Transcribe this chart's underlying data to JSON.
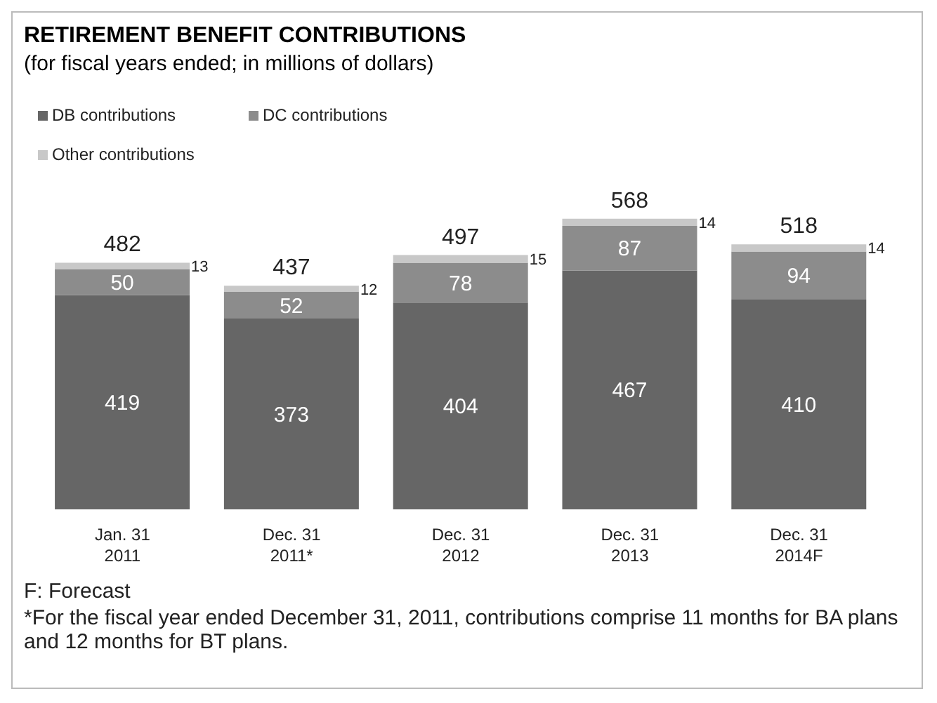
{
  "chart_data": {
    "type": "bar",
    "title": "RETIREMENT BENEFIT CONTRIBUTIONS",
    "subtitle": "(for fiscal years ended; in millions of dollars)",
    "categories": [
      "Jan. 31\n2011",
      "Dec. 31\n2011*",
      "Dec. 31\n2012",
      "Dec. 31\n2013",
      "Dec. 31\n2014F"
    ],
    "stacked": true,
    "data_labels": true,
    "legend": "top left",
    "series": [
      {
        "name": "DB contributions",
        "color": "#666666",
        "values": [
          419,
          373,
          404,
          467,
          410
        ]
      },
      {
        "name": "DC contributions",
        "color": "#8c8c8c",
        "values": [
          50,
          52,
          78,
          87,
          94
        ]
      },
      {
        "name": "Other contributions",
        "color": "#c8c8c8",
        "values": [
          13,
          12,
          15,
          14,
          14
        ]
      }
    ],
    "totals": [
      "482",
      "437",
      "497",
      "568",
      "518"
    ],
    "annotations": [
      "F: Forecast",
      "*For the fiscal year ended December 31, 2011, contributions comprise 11 months for BA plans and 12 months for BT plans."
    ]
  }
}
